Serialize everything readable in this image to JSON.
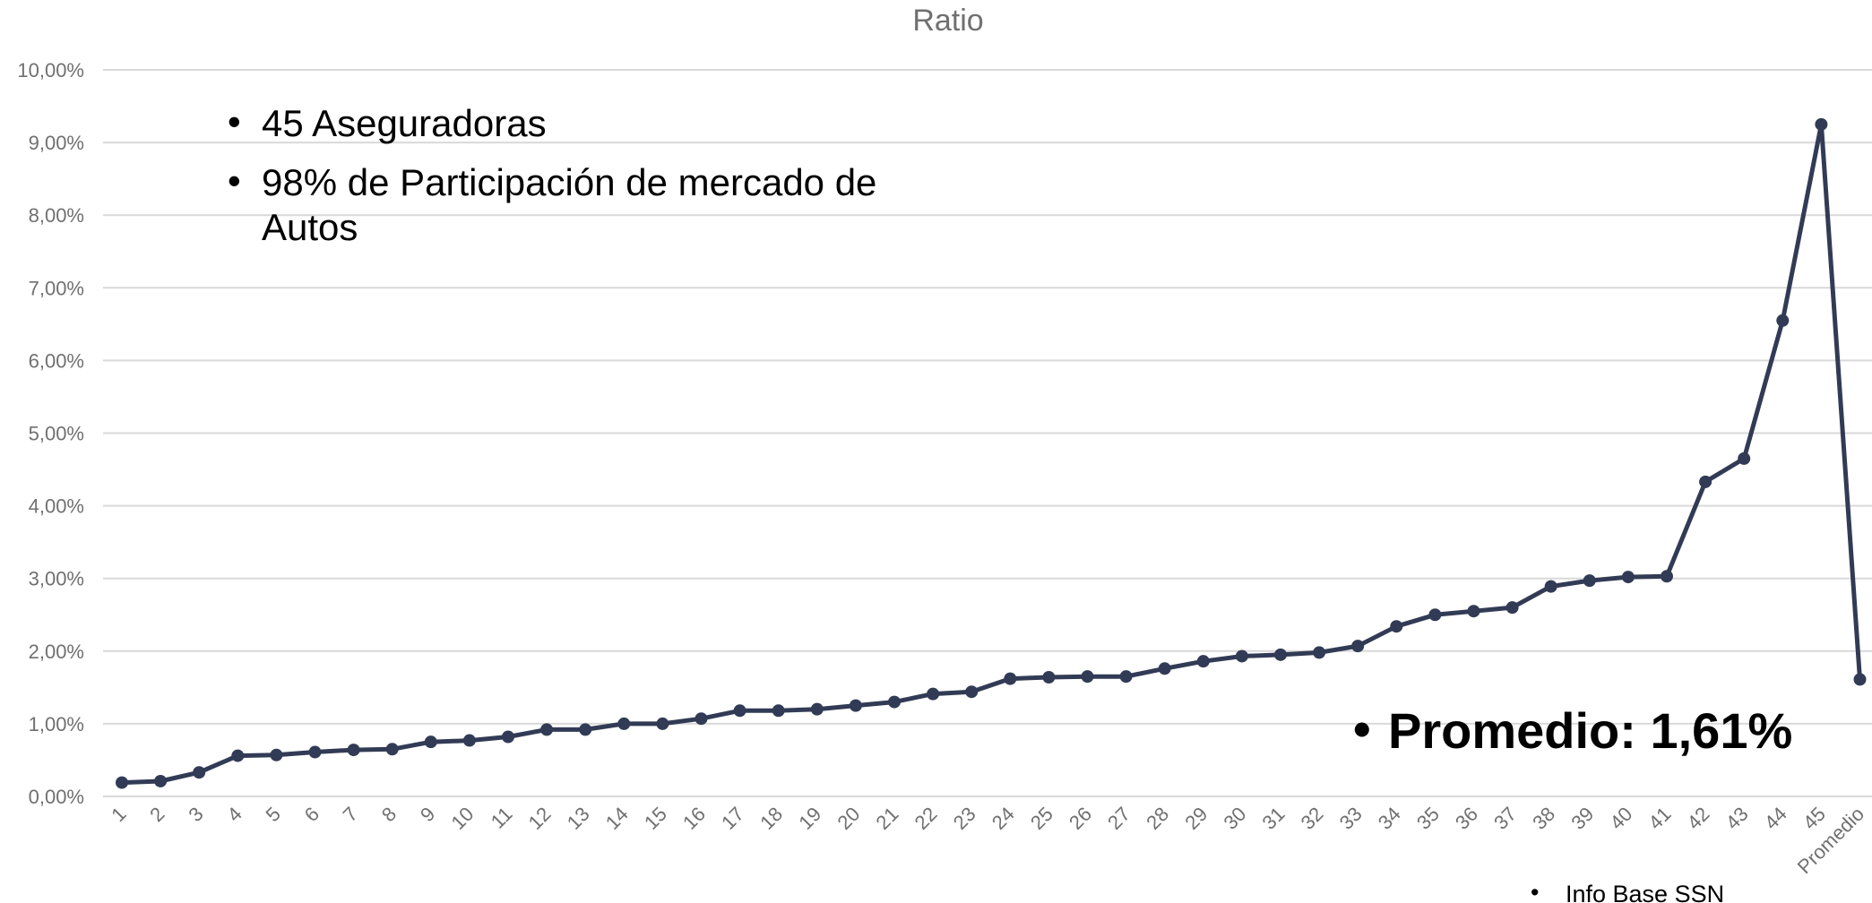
{
  "chart_data": {
    "type": "line",
    "title": "Ratio",
    "xlabel": "",
    "ylabel": "",
    "ylim": [
      0,
      10
    ],
    "y_tick_labels": [
      "0,00%",
      "1,00%",
      "2,00%",
      "3,00%",
      "4,00%",
      "5,00%",
      "6,00%",
      "7,00%",
      "8,00%",
      "9,00%",
      "10,00%"
    ],
    "grid": true,
    "legend": "none",
    "categories": [
      "1",
      "2",
      "3",
      "4",
      "5",
      "6",
      "7",
      "8",
      "9",
      "10",
      "11",
      "12",
      "13",
      "14",
      "15",
      "16",
      "17",
      "18",
      "19",
      "20",
      "21",
      "22",
      "23",
      "24",
      "25",
      "26",
      "27",
      "28",
      "29",
      "30",
      "31",
      "32",
      "33",
      "34",
      "35",
      "36",
      "37",
      "38",
      "39",
      "40",
      "41",
      "42",
      "43",
      "44",
      "45",
      "Promedio"
    ],
    "series": [
      {
        "color": "#323b55",
        "values": [
          0.19,
          0.21,
          0.33,
          0.56,
          0.57,
          0.61,
          0.64,
          0.65,
          0.75,
          0.77,
          0.82,
          0.92,
          0.92,
          1.0,
          1.0,
          1.07,
          1.18,
          1.18,
          1.2,
          1.25,
          1.3,
          1.41,
          1.44,
          1.62,
          1.64,
          1.65,
          1.65,
          1.76,
          1.86,
          1.93,
          1.95,
          1.98,
          2.07,
          2.34,
          2.5,
          2.55,
          2.6,
          2.89,
          2.97,
          3.02,
          3.03,
          4.33,
          4.65,
          6.55,
          9.25,
          1.61
        ]
      }
    ],
    "annotations": {
      "bullet": "•",
      "notes": [
        "45 Aseguradoras",
        "98% de Participación de mercado de",
        "Autos"
      ],
      "average": "Promedio: 1,61%",
      "source": "Info Base SSN"
    }
  }
}
